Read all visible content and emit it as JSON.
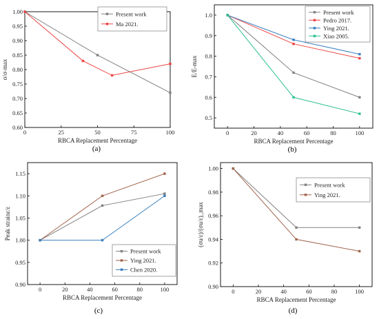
{
  "chart_data": [
    {
      "type": "line",
      "panel_label": "(a)",
      "xlabel": "RBCA Replacement Percentage",
      "ylabel": "σ/σ-max",
      "xlim": [
        0,
        100
      ],
      "ylim": [
        0.6,
        1.0
      ],
      "xticks": [
        "0",
        "25",
        "50",
        "75",
        "100"
      ],
      "xtick_values": [
        0,
        25,
        50,
        75,
        100
      ],
      "yticks": [
        "0.60",
        "0.65",
        "0.70",
        "0.75",
        "0.80",
        "0.85",
        "0.90",
        "0.95",
        "1.00"
      ],
      "ytick_values": [
        0.6,
        0.65,
        0.7,
        0.75,
        0.8,
        0.85,
        0.9,
        0.95,
        1.0
      ],
      "grid": false,
      "legend_position": "top-right",
      "series": [
        {
          "name": "Present work",
          "color": "#808080",
          "marker": "square",
          "x": [
            0,
            50,
            100
          ],
          "y": [
            1.0,
            0.85,
            0.72
          ]
        },
        {
          "name": "Ma 2021.",
          "color": "#ee4444",
          "marker": "square",
          "x": [
            0,
            40,
            60,
            100
          ],
          "y": [
            1.0,
            0.83,
            0.78,
            0.82
          ]
        }
      ]
    },
    {
      "type": "line",
      "panel_label": "(b)",
      "xlabel": "RBCA Replacement Percentage",
      "ylabel": "E/E-max",
      "xlim": [
        -10,
        110
      ],
      "ylim": [
        0.45,
        1.05
      ],
      "xticks": [
        "0",
        "20",
        "40",
        "60",
        "80",
        "100"
      ],
      "xtick_values": [
        0,
        20,
        40,
        60,
        80,
        100
      ],
      "yticks": [
        "0.5",
        "0.6",
        "0.7",
        "0.8",
        "0.9",
        "1.0"
      ],
      "ytick_values": [
        0.5,
        0.6,
        0.7,
        0.8,
        0.9,
        1.0
      ],
      "grid": false,
      "legend_position": "top-right",
      "series": [
        {
          "name": "Present work",
          "color": "#808080",
          "marker": "square",
          "x": [
            0,
            50,
            100
          ],
          "y": [
            1.0,
            0.72,
            0.6
          ]
        },
        {
          "name": "Pedro 2017.",
          "color": "#ee4444",
          "marker": "square",
          "x": [
            0,
            50,
            100
          ],
          "y": [
            1.0,
            0.86,
            0.79
          ]
        },
        {
          "name": "Ying 2021.",
          "color": "#3a7fc0",
          "marker": "square",
          "x": [
            0,
            50,
            100
          ],
          "y": [
            1.0,
            0.88,
            0.81
          ]
        },
        {
          "name": "Xiao 2005.",
          "color": "#2ec08e",
          "marker": "square",
          "x": [
            0,
            50,
            100
          ],
          "y": [
            1.0,
            0.6,
            0.52
          ]
        }
      ]
    },
    {
      "type": "line",
      "panel_label": "(c)",
      "xlabel": "RBCA Replacement Percentage",
      "ylabel": "Peak strainε/ε",
      "xlim": [
        -10,
        110
      ],
      "ylim": [
        0.9,
        1.175
      ],
      "xticks": [
        "0",
        "20",
        "40",
        "60",
        "80",
        "100"
      ],
      "xtick_values": [
        0,
        20,
        40,
        60,
        80,
        100
      ],
      "yticks": [
        "0.90",
        "0.95",
        "1.00",
        "1.05",
        "1.10",
        "1.15"
      ],
      "ytick_values": [
        0.9,
        0.95,
        1.0,
        1.05,
        1.1,
        1.15
      ],
      "grid": false,
      "legend_position": "bottom-right",
      "series": [
        {
          "name": "Present work",
          "color": "#808080",
          "marker": "square",
          "x": [
            0,
            50,
            100
          ],
          "y": [
            1.0,
            1.078,
            1.105
          ]
        },
        {
          "name": "Ying 2021.",
          "color": "#a0634a",
          "marker": "square",
          "x": [
            0,
            50,
            100
          ],
          "y": [
            1.0,
            1.1,
            1.15
          ]
        },
        {
          "name": "Chen 2020.",
          "color": "#3a7fc0",
          "marker": "square",
          "x": [
            0,
            50,
            100
          ],
          "y": [
            1.0,
            1.0,
            1.1
          ]
        }
      ]
    },
    {
      "type": "line",
      "panel_label": "(d)",
      "xlabel": "RBCA Replacement Percentage",
      "ylabel": "(σu/ε)/(σu/ε)_max",
      "xlim": [
        -10,
        110
      ],
      "ylim": [
        0.9,
        1.005
      ],
      "xticks": [
        "0",
        "20",
        "40",
        "60",
        "80",
        "100"
      ],
      "xtick_values": [
        0,
        20,
        40,
        60,
        80,
        100
      ],
      "yticks": [
        "0.90",
        "0.92",
        "0.94",
        "0.96",
        "0.98",
        "1.00"
      ],
      "ytick_values": [
        0.9,
        0.92,
        0.94,
        0.96,
        0.98,
        1.0
      ],
      "grid": false,
      "legend_position": "top-right",
      "series": [
        {
          "name": "Present work",
          "color": "#808080",
          "marker": "square",
          "x": [
            0,
            50,
            100
          ],
          "y": [
            1.0,
            0.95,
            0.95
          ]
        },
        {
          "name": "Ying 2021.",
          "color": "#a0634a",
          "marker": "square",
          "x": [
            0,
            50,
            100
          ],
          "y": [
            1.0,
            0.94,
            0.93
          ]
        }
      ]
    }
  ]
}
